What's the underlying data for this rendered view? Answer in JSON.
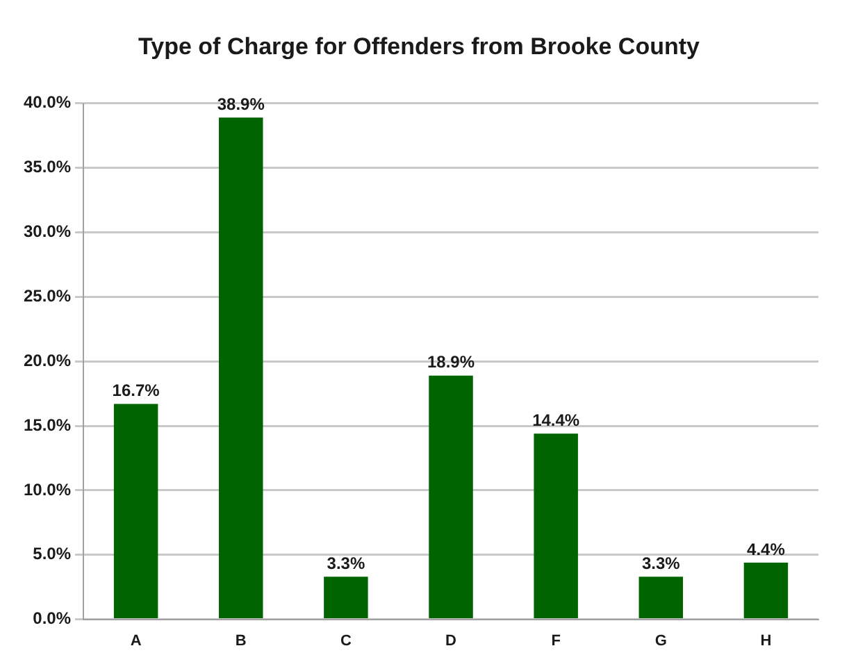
{
  "chart_data": {
    "type": "bar",
    "title": "Type of Charge for Offenders from Brooke County",
    "categories": [
      "A",
      "B",
      "C",
      "D",
      "F",
      "G",
      "H"
    ],
    "values": [
      16.7,
      38.9,
      3.3,
      18.9,
      14.4,
      3.3,
      4.4
    ],
    "value_labels": [
      "16.7%",
      "38.9%",
      "3.3%",
      "18.9%",
      "14.4%",
      "3.3%",
      "4.4%"
    ],
    "color": "#006400",
    "ylim": [
      0,
      40
    ],
    "yticks": [
      {
        "value": 0,
        "label": "0.0%"
      },
      {
        "value": 5,
        "label": "5.0%"
      },
      {
        "value": 10,
        "label": "10.0%"
      },
      {
        "value": 15,
        "label": "15.0%"
      },
      {
        "value": 20,
        "label": "20.0%"
      },
      {
        "value": 25,
        "label": "25.0%"
      },
      {
        "value": 30,
        "label": "30.0%"
      },
      {
        "value": 35,
        "label": "35.0%"
      },
      {
        "value": 40,
        "label": "40.0%"
      }
    ],
    "grid": "y",
    "legend": false
  }
}
